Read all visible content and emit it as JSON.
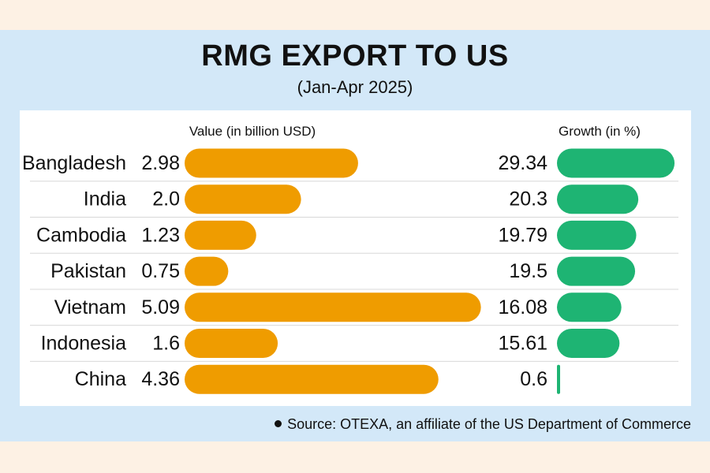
{
  "colors": {
    "value_bar": "#ef9c00",
    "growth_bar": "#1eb473",
    "divider": "#d8d8d8",
    "text": "#111111"
  },
  "chart_data": {
    "type": "bar",
    "title": "RMG EXPORT TO US",
    "subtitle": "(Jan-Apr 2025)",
    "categories": [
      "Bangladesh",
      "India",
      "Cambodia",
      "Pakistan",
      "Vietnam",
      "Indonesia",
      "China"
    ],
    "series": [
      {
        "name": "Value (in billion USD)",
        "labels": [
          "2.98",
          "2.0",
          "1.23",
          "0.75",
          "5.09",
          "1.6",
          "4.36"
        ],
        "values": [
          2.98,
          2.0,
          1.23,
          0.75,
          5.09,
          1.6,
          4.36
        ]
      },
      {
        "name": "Growth (in %)",
        "labels": [
          "29.34",
          "20.3",
          "19.79",
          "19.5",
          "16.08",
          "15.61",
          "0.6"
        ],
        "values": [
          29.34,
          20.3,
          19.79,
          19.5,
          16.08,
          15.61,
          0.6
        ]
      }
    ],
    "orientation": "horizontal",
    "legend": "none"
  },
  "source": "Source: OTEXA, an affiliate of the US Department of Commerce"
}
